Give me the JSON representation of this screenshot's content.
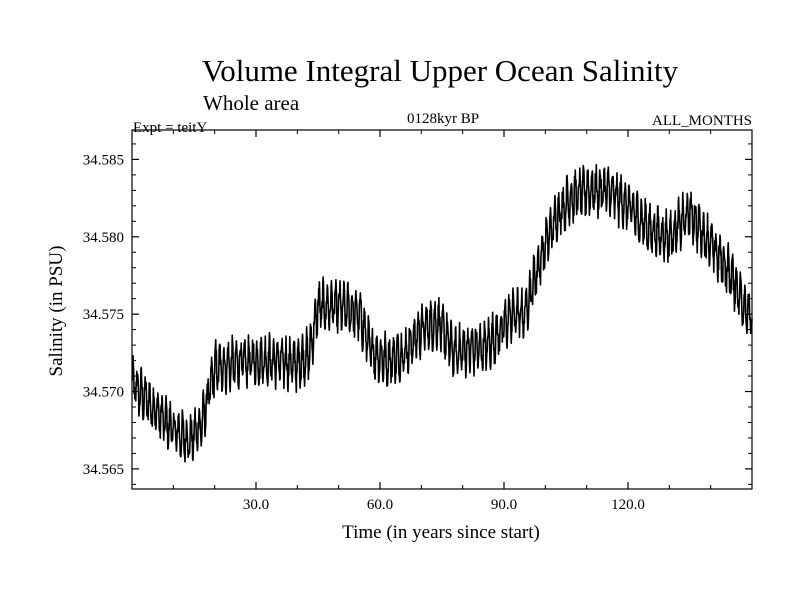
{
  "chart_data": {
    "type": "line",
    "title": "Volume Integral Upper Ocean Salinity",
    "subtitle": "Whole area",
    "experiment_label": "Expt = teitY",
    "period_label": "0128kyr BP",
    "months_label": "ALL_MONTHS",
    "xlabel": "Time (in years since start)",
    "ylabel": "Salinity (in PSU)",
    "xlim": [
      0,
      150
    ],
    "ylim": [
      34.5637,
      34.5869
    ],
    "x_ticks": [
      30,
      60,
      90,
      120
    ],
    "x_tick_labels": [
      "30.0",
      "60.0",
      "90.0",
      "120.0"
    ],
    "y_ticks": [
      34.565,
      34.57,
      34.575,
      34.58,
      34.585
    ],
    "y_tick_labels": [
      "34.565",
      "34.570",
      "34.575",
      "34.580",
      "34.585"
    ],
    "grid": false,
    "sampling": "monthly",
    "series": [
      {
        "name": "Salinity",
        "color": "#000000",
        "trend_x": [
          0,
          5,
          10,
          14,
          17,
          20,
          25,
          30,
          35,
          40,
          43,
          45,
          50,
          55,
          58,
          62,
          66,
          70,
          74,
          78,
          82,
          85,
          88,
          92,
          95,
          97,
          100,
          103,
          106,
          110,
          115,
          120,
          125,
          130,
          135,
          140,
          145,
          150
        ],
        "trend_y": [
          34.5705,
          34.569,
          34.5675,
          34.5668,
          34.568,
          34.5715,
          34.5718,
          34.572,
          34.572,
          34.5718,
          34.5725,
          34.5755,
          34.5755,
          34.575,
          34.5725,
          34.572,
          34.5725,
          34.574,
          34.5745,
          34.5725,
          34.5728,
          34.5728,
          34.5735,
          34.575,
          34.575,
          34.577,
          34.5795,
          34.5815,
          34.5825,
          34.583,
          34.583,
          34.582,
          34.5805,
          34.58,
          34.5815,
          34.5795,
          34.5775,
          34.5745
        ],
        "seasonal_amplitude": 0.0012
      }
    ]
  }
}
